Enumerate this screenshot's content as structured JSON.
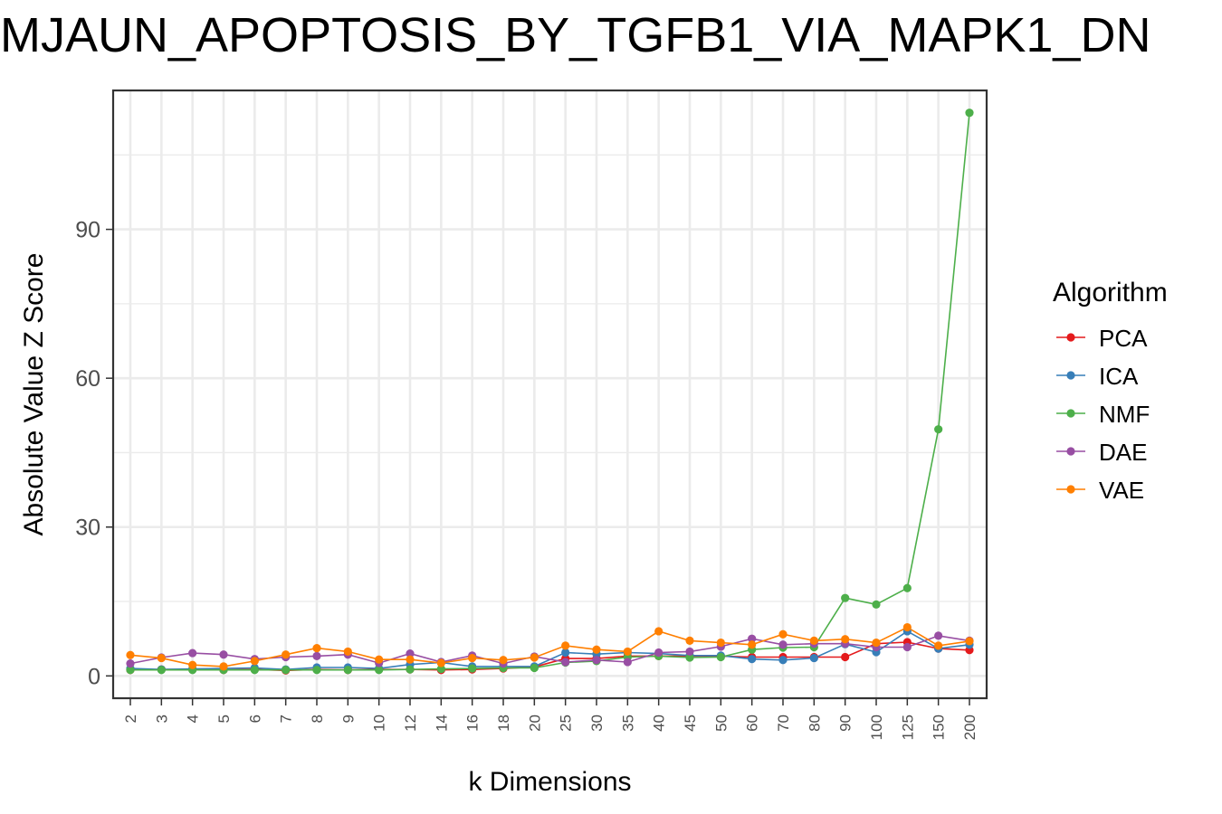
{
  "chart_data": {
    "type": "line",
    "title": "MJAUN_APOPTOSIS_BY_TGFB1_VIA_MAPK1_DN",
    "xlabel": "k Dimensions",
    "ylabel": "Absolute Value Z Score",
    "categories": [
      "2",
      "3",
      "4",
      "5",
      "6",
      "7",
      "8",
      "9",
      "10",
      "12",
      "14",
      "16",
      "18",
      "20",
      "25",
      "30",
      "35",
      "40",
      "45",
      "50",
      "60",
      "70",
      "80",
      "90",
      "100",
      "125",
      "150",
      "200"
    ],
    "ylim": [
      -4.5,
      118
    ],
    "y_ticks": [
      0,
      30,
      60,
      90
    ],
    "grid": true,
    "legend": {
      "title": "Algorithm",
      "position": "right"
    },
    "series": [
      {
        "name": "PCA",
        "color": "#e41a1c",
        "values": [
          1.2,
          1.3,
          1.3,
          1.2,
          1.3,
          1.1,
          1.3,
          1.2,
          1.3,
          1.3,
          1.2,
          1.3,
          1.5,
          1.8,
          3.5,
          3.5,
          4.0,
          4.0,
          4.0,
          4.0,
          3.8,
          3.8,
          3.8,
          3.8,
          6.5,
          6.8,
          5.5,
          5.2
        ]
      },
      {
        "name": "ICA",
        "color": "#377eb8",
        "values": [
          1.5,
          1.3,
          1.4,
          1.5,
          1.6,
          1.3,
          1.7,
          1.7,
          1.5,
          2.3,
          2.7,
          1.9,
          1.9,
          1.9,
          4.7,
          4.4,
          4.7,
          4.5,
          4.1,
          4.1,
          3.4,
          3.2,
          3.6,
          6.4,
          4.8,
          9.0,
          5.5,
          6.3
        ]
      },
      {
        "name": "NMF",
        "color": "#4daf4a",
        "values": [
          1.2,
          1.2,
          1.2,
          1.2,
          1.2,
          1.2,
          1.2,
          1.2,
          1.2,
          1.3,
          1.4,
          1.5,
          1.6,
          1.6,
          2.7,
          3.0,
          3.8,
          4.0,
          3.7,
          3.8,
          5.3,
          5.7,
          5.8,
          15.7,
          14.4,
          17.7,
          49.7,
          113.5
        ]
      },
      {
        "name": "DAE",
        "color": "#984ea3",
        "values": [
          2.5,
          3.7,
          4.6,
          4.3,
          3.4,
          3.8,
          4.0,
          4.3,
          2.6,
          4.5,
          2.8,
          4.1,
          2.5,
          3.9,
          2.8,
          3.2,
          2.8,
          4.7,
          4.9,
          5.9,
          7.5,
          6.3,
          6.5,
          6.5,
          5.8,
          5.8,
          8.1,
          7.1
        ]
      },
      {
        "name": "VAE",
        "color": "#ff7f00",
        "values": [
          4.2,
          3.6,
          2.2,
          1.9,
          3.0,
          4.3,
          5.6,
          4.9,
          3.3,
          3.3,
          2.6,
          3.6,
          3.2,
          3.7,
          6.1,
          5.3,
          4.9,
          9.0,
          7.1,
          6.7,
          6.3,
          8.4,
          7.1,
          7.4,
          6.7,
          9.8,
          6.1,
          7.0
        ]
      }
    ]
  }
}
